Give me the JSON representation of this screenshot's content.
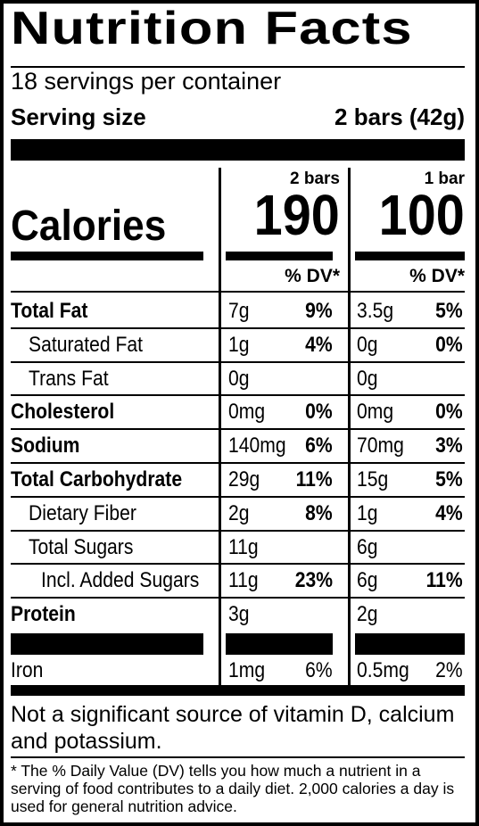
{
  "title": "Nutrition Facts",
  "servings_per_container": "18 servings per container",
  "serving_size_label": "Serving size",
  "serving_size_value": "2 bars (42g)",
  "columns": {
    "col1": "2 bars",
    "col2": "1 bar"
  },
  "calories": {
    "label": "Calories",
    "col1": "190",
    "col2": "100"
  },
  "dv_header": {
    "col1": "% DV*",
    "col2": "% DV*"
  },
  "nutrients": [
    {
      "name": "Total Fat",
      "bold": true,
      "indent": 0,
      "v1": "7g",
      "p1": "9%",
      "v2": "3.5g",
      "p2": "5%"
    },
    {
      "name": "Saturated Fat",
      "bold": false,
      "indent": 1,
      "v1": "1g",
      "p1": "4%",
      "v2": "0g",
      "p2": "0%"
    },
    {
      "name": "Trans Fat",
      "bold": false,
      "indent": 1,
      "v1": "0g",
      "p1": "",
      "v2": "0g",
      "p2": ""
    },
    {
      "name": "Cholesterol",
      "bold": true,
      "indent": 0,
      "v1": "0mg",
      "p1": "0%",
      "v2": "0mg",
      "p2": "0%"
    },
    {
      "name": "Sodium",
      "bold": true,
      "indent": 0,
      "v1": "140mg",
      "p1": "6%",
      "v2": "70mg",
      "p2": "3%"
    },
    {
      "name": "Total Carbohydrate",
      "bold": true,
      "indent": 0,
      "v1": "29g",
      "p1": "11%",
      "v2": "15g",
      "p2": "5%"
    },
    {
      "name": "Dietary Fiber",
      "bold": false,
      "indent": 1,
      "v1": "2g",
      "p1": "8%",
      "v2": "1g",
      "p2": "4%"
    },
    {
      "name": "Total Sugars",
      "bold": false,
      "indent": 1,
      "v1": "11g",
      "p1": "",
      "v2": "6g",
      "p2": ""
    },
    {
      "name": "Incl. Added Sugars",
      "bold": false,
      "indent": 2,
      "v1": "11g",
      "p1": "23%",
      "v2": "6g",
      "p2": "11%"
    },
    {
      "name": "Protein",
      "bold": true,
      "indent": 0,
      "v1": "3g",
      "p1": "",
      "v2": "2g",
      "p2": ""
    }
  ],
  "iron": {
    "name": "Iron",
    "v1": "1mg",
    "p1": "6%",
    "v2": "0.5mg",
    "p2": "2%"
  },
  "footnote_main": "Not a significant source of vitamin D, calcium and potassium.",
  "footnote_dv": "* The % Daily Value (DV) tells you how much a nutrient in a serving of food contributes to a daily diet. 2,000 calories a day is used for general nutrition advice."
}
